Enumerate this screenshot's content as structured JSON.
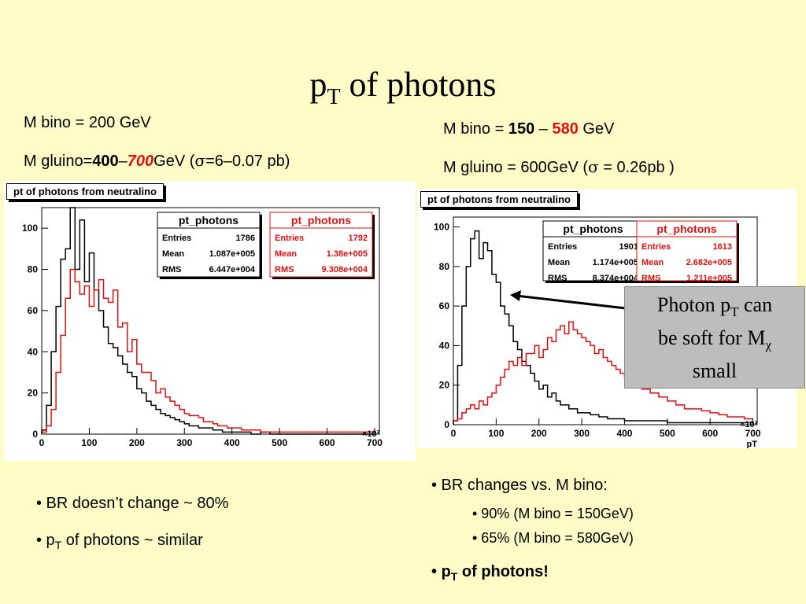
{
  "title": {
    "main": "p",
    "sub": "T",
    "rest": " of photons"
  },
  "left": {
    "line1": "M bino = 200 GeV",
    "line2_pre": "M gluino=",
    "line2_b1": "400",
    "line2_dash": "–",
    "line2_b2": "700",
    "line2_post": "GeV (",
    "sigma": "σ",
    "line2_tail": "=6–0.07 pb)"
  },
  "right": {
    "line1_pre": "M bino = ",
    "line1_b1": "150",
    "line1_dash": " – ",
    "line1_b2": "580",
    "line1_post": " GeV",
    "line2_pre": "M gluino = 600GeV (",
    "sigma": "σ",
    "line2_post": " = 0.26pb )"
  },
  "callout": {
    "l1a": "Photon p",
    "l1sub": "T",
    "l1b": " can",
    "l2a": "be soft for M",
    "l2sub": "χ",
    "l3": "small"
  },
  "bullets_left": [
    {
      "text": "• BR doesn’t change ~ 80%"
    },
    {
      "a": "• p",
      "sub": "T",
      "b": " of photons ~ similar"
    }
  ],
  "bullets_right": {
    "b1": "•  BR changes vs. M bino:",
    "s1": "• 90% (M bino = 150GeV)",
    "s2": "• 65% (M bino = 580GeV)",
    "b2a": "•  ",
    "b2b": "p",
    "b2sub": "T",
    "b2c": " of photons!"
  },
  "chart_data": [
    {
      "type": "line",
      "title": "pt of photons from neutralino",
      "xlabel": "",
      "xmultiplier": "×10³",
      "ylabel": "",
      "xlim": [
        0,
        710
      ],
      "ylim": [
        0,
        110
      ],
      "xticks": [
        0,
        100,
        200,
        300,
        400,
        500,
        600,
        700
      ],
      "yticks": [
        0,
        20,
        40,
        60,
        80,
        100
      ],
      "color_black": "#000000",
      "color_red": "#e01010",
      "stats": [
        {
          "name": "pt_photons",
          "color": "#000000",
          "entries": "1786",
          "mean": "1.087e+005",
          "rms": "6.447e+004"
        },
        {
          "name": "pt_photons",
          "color": "#e01010",
          "entries": "1792",
          "mean": "1.38e+005",
          "rms": "9.308e+004"
        }
      ],
      "stat_labels": {
        "entries": "Entries",
        "mean": "Mean",
        "rms": "RMS"
      },
      "series": [
        {
          "color": "#000000",
          "x": [
            0,
            10,
            20,
            30,
            40,
            50,
            60,
            70,
            80,
            90,
            100,
            110,
            120,
            130,
            140,
            150,
            160,
            170,
            180,
            190,
            200,
            210,
            220,
            230,
            240,
            250,
            260,
            270,
            280,
            290,
            300,
            310,
            320,
            330,
            340,
            350,
            360,
            370,
            380,
            390,
            400,
            420,
            440,
            460,
            480,
            500,
            700
          ],
          "values": [
            2,
            14,
            40,
            62,
            85,
            90,
            110,
            80,
            104,
            74,
            88,
            70,
            60,
            52,
            44,
            42,
            38,
            34,
            30,
            28,
            22,
            20,
            16,
            14,
            12,
            10,
            9,
            8,
            7,
            6,
            5,
            4,
            4,
            3,
            3,
            3,
            2,
            2,
            1,
            1,
            1,
            1,
            0,
            1,
            0,
            0,
            0
          ]
        },
        {
          "color": "#e01010",
          "x": [
            0,
            10,
            20,
            30,
            40,
            50,
            60,
            70,
            80,
            90,
            100,
            110,
            120,
            130,
            140,
            150,
            160,
            170,
            180,
            190,
            200,
            210,
            220,
            230,
            240,
            250,
            260,
            270,
            280,
            290,
            300,
            310,
            320,
            330,
            340,
            350,
            360,
            370,
            380,
            390,
            400,
            420,
            440,
            460,
            480,
            500,
            700
          ],
          "values": [
            1,
            4,
            12,
            30,
            48,
            66,
            80,
            74,
            68,
            72,
            62,
            70,
            75,
            66,
            64,
            70,
            52,
            54,
            40,
            46,
            34,
            30,
            30,
            26,
            20,
            22,
            18,
            16,
            14,
            12,
            10,
            9,
            9,
            8,
            6,
            6,
            5,
            4,
            4,
            3,
            3,
            2,
            2,
            1,
            1,
            1,
            0
          ]
        }
      ]
    },
    {
      "type": "line",
      "title": "pt of photons from neutralino",
      "xlabel": "pT",
      "xmultiplier": "×10³",
      "ylabel": "",
      "xlim": [
        0,
        710
      ],
      "ylim": [
        0,
        105
      ],
      "xticks": [
        0,
        100,
        200,
        300,
        400,
        500,
        600,
        700
      ],
      "yticks": [
        0,
        20,
        40,
        60,
        80,
        100
      ],
      "color_black": "#000000",
      "color_red": "#e01010",
      "stats": [
        {
          "name": "pt_photons",
          "color": "#000000",
          "entries": "1901",
          "mean": "1.174e+005",
          "rms": "8.374e+004"
        },
        {
          "name": "pt_photons",
          "color": "#e01010",
          "entries": "1613",
          "mean": "2.682e+005",
          "rms": "1.211e+005"
        }
      ],
      "stat_labels": {
        "entries": "Entries",
        "mean": "Mean",
        "rms": "RMS"
      },
      "series": [
        {
          "color": "#000000",
          "x": [
            0,
            10,
            20,
            30,
            40,
            50,
            60,
            70,
            80,
            90,
            100,
            110,
            120,
            130,
            140,
            150,
            160,
            170,
            180,
            190,
            200,
            210,
            220,
            230,
            240,
            250,
            260,
            270,
            280,
            290,
            300,
            320,
            340,
            360,
            380,
            400,
            450,
            500,
            550,
            600,
            700
          ],
          "values": [
            2,
            30,
            60,
            80,
            94,
            98,
            84,
            92,
            88,
            76,
            72,
            60,
            56,
            50,
            42,
            38,
            32,
            30,
            26,
            22,
            18,
            20,
            14,
            16,
            12,
            10,
            10,
            8,
            8,
            6,
            6,
            5,
            4,
            3,
            3,
            2,
            2,
            1,
            1,
            1,
            0
          ]
        },
        {
          "color": "#e01010",
          "x": [
            0,
            10,
            20,
            30,
            40,
            50,
            60,
            70,
            80,
            90,
            100,
            110,
            120,
            130,
            140,
            150,
            160,
            170,
            180,
            190,
            200,
            210,
            220,
            230,
            240,
            250,
            260,
            270,
            280,
            290,
            300,
            310,
            320,
            330,
            340,
            350,
            360,
            370,
            380,
            390,
            400,
            420,
            440,
            460,
            480,
            500,
            520,
            540,
            560,
            580,
            600,
            620,
            640,
            660,
            680,
            700
          ],
          "values": [
            2,
            3,
            6,
            8,
            10,
            8,
            12,
            10,
            14,
            16,
            20,
            24,
            28,
            32,
            30,
            34,
            30,
            36,
            36,
            40,
            34,
            38,
            44,
            42,
            48,
            50,
            46,
            52,
            48,
            46,
            44,
            42,
            40,
            36,
            38,
            34,
            32,
            30,
            28,
            26,
            24,
            20,
            18,
            16,
            14,
            12,
            10,
            8,
            8,
            7,
            6,
            5,
            4,
            4,
            3,
            2
          ]
        }
      ]
    }
  ]
}
